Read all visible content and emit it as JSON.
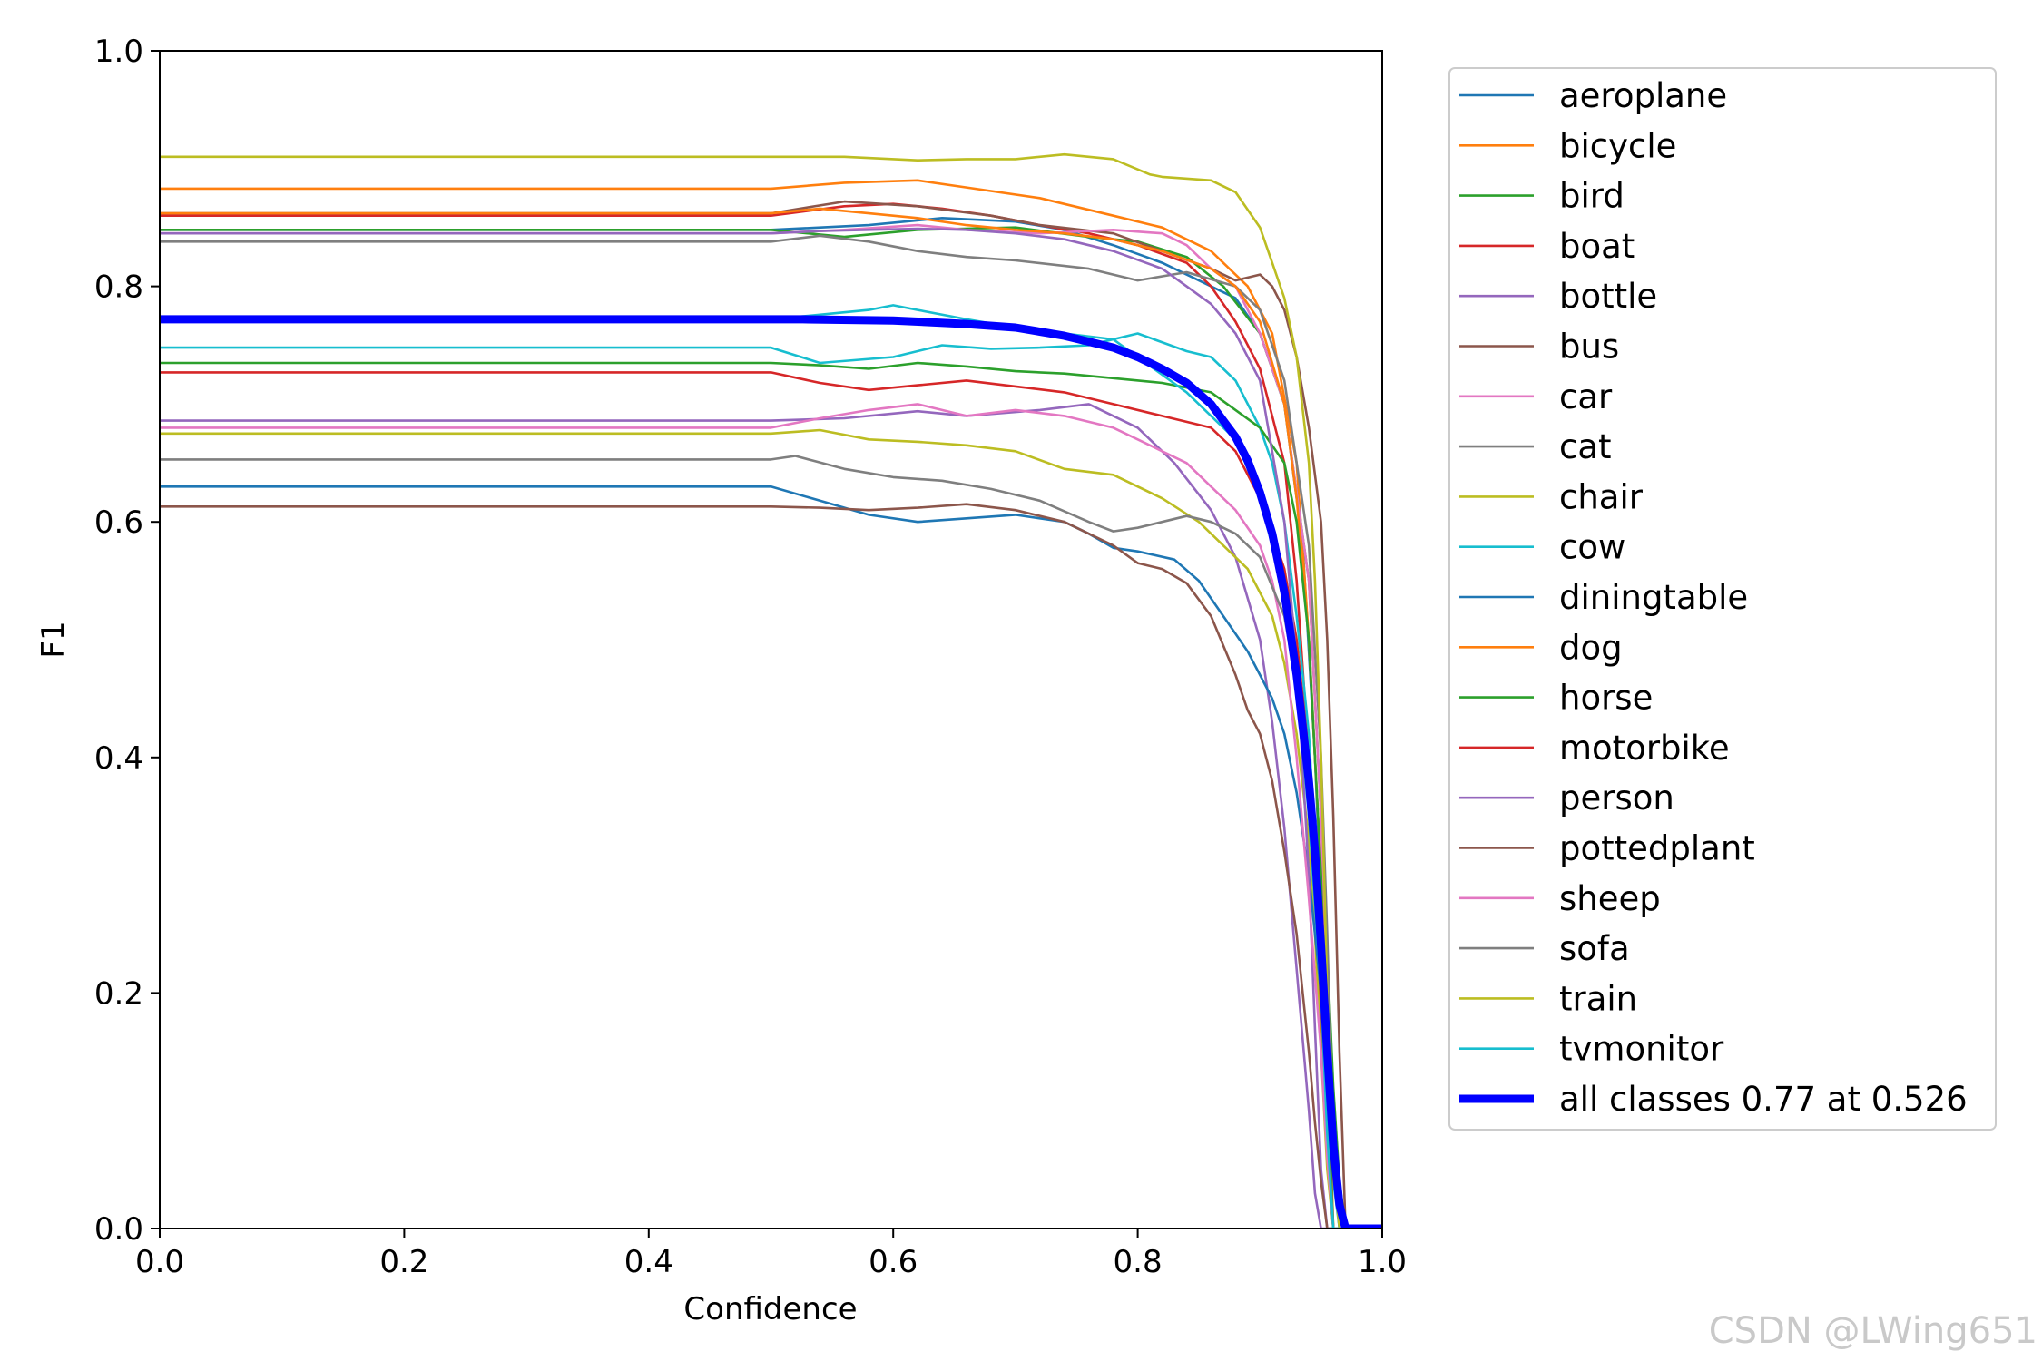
{
  "chart_data": {
    "type": "line",
    "title": "",
    "xlabel": "Confidence",
    "ylabel": "F1",
    "xlim": [
      0,
      1
    ],
    "ylim": [
      0,
      1
    ],
    "xticks": [
      "0.0",
      "0.2",
      "0.4",
      "0.6",
      "0.8",
      "1.0"
    ],
    "yticks": [
      "0.0",
      "0.2",
      "0.4",
      "0.6",
      "0.8",
      "1.0"
    ],
    "legend_position": "outside-right",
    "series": [
      {
        "name": "aeroplane",
        "color": "#1f77b4",
        "x": [
          0,
          0.5,
          0.58,
          0.64,
          0.7,
          0.74,
          0.78,
          0.82,
          0.85,
          0.88,
          0.9,
          0.92,
          0.935,
          0.945,
          0.955,
          0.96,
          0.965,
          0.97,
          1.0
        ],
        "y": [
          0.848,
          0.848,
          0.852,
          0.858,
          0.855,
          0.848,
          0.835,
          0.82,
          0.805,
          0.79,
          0.76,
          0.7,
          0.58,
          0.4,
          0.15,
          0.05,
          0.01,
          0.0,
          0.0
        ]
      },
      {
        "name": "bicycle",
        "color": "#ff7f0e",
        "x": [
          0,
          0.5,
          0.56,
          0.62,
          0.66,
          0.72,
          0.78,
          0.82,
          0.86,
          0.89,
          0.91,
          0.93,
          0.94,
          0.95,
          0.96,
          0.965,
          0.97,
          1.0
        ],
        "y": [
          0.883,
          0.883,
          0.888,
          0.89,
          0.884,
          0.875,
          0.86,
          0.85,
          0.83,
          0.8,
          0.76,
          0.65,
          0.5,
          0.3,
          0.1,
          0.03,
          0.0,
          0.0
        ]
      },
      {
        "name": "bird",
        "color": "#2ca02c",
        "x": [
          0,
          0.5,
          0.56,
          0.62,
          0.7,
          0.76,
          0.8,
          0.84,
          0.87,
          0.9,
          0.92,
          0.94,
          0.95,
          0.96,
          0.965,
          0.97,
          1.0
        ],
        "y": [
          0.848,
          0.848,
          0.842,
          0.848,
          0.85,
          0.842,
          0.838,
          0.825,
          0.8,
          0.76,
          0.7,
          0.55,
          0.35,
          0.12,
          0.04,
          0.0,
          0.0
        ]
      },
      {
        "name": "boat",
        "color": "#d62728",
        "x": [
          0,
          0.5,
          0.56,
          0.6,
          0.64,
          0.68,
          0.72,
          0.76,
          0.8,
          0.84,
          0.86,
          0.88,
          0.9,
          0.92,
          0.93,
          0.94,
          0.95,
          0.955,
          0.96,
          1.0
        ],
        "y": [
          0.86,
          0.86,
          0.868,
          0.87,
          0.866,
          0.86,
          0.852,
          0.845,
          0.835,
          0.82,
          0.8,
          0.77,
          0.73,
          0.65,
          0.55,
          0.4,
          0.18,
          0.06,
          0.0,
          0.0
        ]
      },
      {
        "name": "bottle",
        "color": "#9467bd",
        "x": [
          0,
          0.5,
          0.56,
          0.62,
          0.66,
          0.72,
          0.76,
          0.8,
          0.83,
          0.86,
          0.88,
          0.9,
          0.91,
          0.92,
          0.93,
          0.94,
          0.945,
          0.95,
          1.0
        ],
        "y": [
          0.686,
          0.686,
          0.688,
          0.694,
          0.69,
          0.695,
          0.7,
          0.68,
          0.65,
          0.61,
          0.57,
          0.5,
          0.43,
          0.34,
          0.22,
          0.1,
          0.03,
          0.0,
          0.0
        ]
      },
      {
        "name": "bus",
        "color": "#8c564b",
        "x": [
          0,
          0.5,
          0.56,
          0.62,
          0.68,
          0.72,
          0.78,
          0.82,
          0.86,
          0.88,
          0.9,
          0.91,
          0.92,
          0.93,
          0.94,
          0.95,
          0.955,
          0.96,
          0.965,
          0.97,
          1.0
        ],
        "y": [
          0.862,
          0.862,
          0.872,
          0.868,
          0.86,
          0.852,
          0.845,
          0.83,
          0.815,
          0.805,
          0.81,
          0.8,
          0.78,
          0.74,
          0.68,
          0.6,
          0.5,
          0.35,
          0.15,
          0.0,
          0.0
        ]
      },
      {
        "name": "car",
        "color": "#e377c2",
        "x": [
          0,
          0.5,
          0.56,
          0.62,
          0.66,
          0.72,
          0.78,
          0.82,
          0.84,
          0.86,
          0.88,
          0.9,
          0.92,
          0.94,
          0.95,
          0.955,
          0.96,
          1.0
        ],
        "y": [
          0.845,
          0.845,
          0.848,
          0.852,
          0.848,
          0.845,
          0.848,
          0.845,
          0.835,
          0.815,
          0.8,
          0.76,
          0.7,
          0.55,
          0.35,
          0.15,
          0.0,
          0.0
        ]
      },
      {
        "name": "cat",
        "color": "#7f7f7f",
        "x": [
          0,
          0.5,
          0.54,
          0.58,
          0.62,
          0.66,
          0.7,
          0.76,
          0.8,
          0.84,
          0.88,
          0.9,
          0.92,
          0.94,
          0.95,
          0.955,
          0.96,
          0.965,
          1.0
        ],
        "y": [
          0.838,
          0.838,
          0.843,
          0.838,
          0.83,
          0.825,
          0.822,
          0.815,
          0.805,
          0.812,
          0.8,
          0.78,
          0.72,
          0.58,
          0.4,
          0.25,
          0.08,
          0.0,
          0.0
        ]
      },
      {
        "name": "chair",
        "color": "#bcbd22",
        "x": [
          0,
          0.5,
          0.54,
          0.58,
          0.62,
          0.66,
          0.7,
          0.74,
          0.78,
          0.82,
          0.85,
          0.87,
          0.89,
          0.9,
          0.91,
          0.92,
          0.93,
          0.94,
          0.945,
          0.95,
          0.955,
          0.96,
          1.0
        ],
        "y": [
          0.675,
          0.675,
          0.678,
          0.67,
          0.668,
          0.665,
          0.66,
          0.645,
          0.64,
          0.62,
          0.6,
          0.58,
          0.56,
          0.54,
          0.52,
          0.48,
          0.42,
          0.33,
          0.25,
          0.15,
          0.05,
          0.0,
          0.0
        ]
      },
      {
        "name": "cow",
        "color": "#17becf",
        "x": [
          0,
          0.5,
          0.54,
          0.6,
          0.64,
          0.68,
          0.72,
          0.76,
          0.8,
          0.84,
          0.86,
          0.88,
          0.9,
          0.91,
          0.92,
          0.93,
          0.94,
          0.945,
          0.95,
          0.955,
          0.96,
          0.965,
          1.0
        ],
        "y": [
          0.748,
          0.748,
          0.735,
          0.74,
          0.75,
          0.747,
          0.748,
          0.75,
          0.76,
          0.745,
          0.74,
          0.72,
          0.68,
          0.65,
          0.6,
          0.52,
          0.42,
          0.33,
          0.22,
          0.12,
          0.04,
          0.0,
          0.0
        ]
      },
      {
        "name": "diningtable",
        "color": "#1f77b4",
        "x": [
          0,
          0.5,
          0.54,
          0.58,
          0.62,
          0.66,
          0.7,
          0.74,
          0.76,
          0.78,
          0.8,
          0.83,
          0.85,
          0.87,
          0.88,
          0.89,
          0.9,
          0.91,
          0.92,
          0.93,
          0.94,
          0.95,
          0.955,
          0.96,
          0.965,
          1.0
        ],
        "y": [
          0.63,
          0.63,
          0.618,
          0.606,
          0.6,
          0.603,
          0.606,
          0.6,
          0.59,
          0.578,
          0.575,
          0.568,
          0.55,
          0.52,
          0.505,
          0.49,
          0.47,
          0.45,
          0.42,
          0.37,
          0.3,
          0.2,
          0.12,
          0.05,
          0.0,
          0.0
        ]
      },
      {
        "name": "dog",
        "color": "#ff7f0e",
        "x": [
          0,
          0.5,
          0.54,
          0.58,
          0.62,
          0.66,
          0.7,
          0.74,
          0.78,
          0.82,
          0.86,
          0.88,
          0.9,
          0.92,
          0.93,
          0.94,
          0.95,
          0.955,
          0.96,
          1.0
        ],
        "y": [
          0.862,
          0.862,
          0.866,
          0.862,
          0.858,
          0.852,
          0.848,
          0.845,
          0.84,
          0.83,
          0.815,
          0.8,
          0.77,
          0.7,
          0.62,
          0.5,
          0.3,
          0.15,
          0.0,
          0.0
        ]
      },
      {
        "name": "horse",
        "color": "#2ca02c",
        "x": [
          0,
          0.5,
          0.54,
          0.58,
          0.62,
          0.66,
          0.7,
          0.74,
          0.78,
          0.82,
          0.86,
          0.88,
          0.9,
          0.92,
          0.93,
          0.94,
          0.95,
          0.955,
          0.96,
          1.0
        ],
        "y": [
          0.735,
          0.735,
          0.733,
          0.73,
          0.735,
          0.732,
          0.728,
          0.726,
          0.722,
          0.718,
          0.71,
          0.695,
          0.68,
          0.65,
          0.6,
          0.5,
          0.3,
          0.12,
          0.0,
          0.0
        ]
      },
      {
        "name": "motorbike",
        "color": "#d62728",
        "x": [
          0,
          0.5,
          0.54,
          0.58,
          0.62,
          0.66,
          0.7,
          0.74,
          0.78,
          0.82,
          0.86,
          0.88,
          0.9,
          0.92,
          0.93,
          0.94,
          0.95,
          0.955,
          0.96,
          1.0
        ],
        "y": [
          0.727,
          0.727,
          0.718,
          0.712,
          0.716,
          0.72,
          0.715,
          0.71,
          0.7,
          0.69,
          0.68,
          0.66,
          0.62,
          0.56,
          0.5,
          0.4,
          0.22,
          0.08,
          0.0,
          0.0
        ]
      },
      {
        "name": "person",
        "color": "#9467bd",
        "x": [
          0,
          0.5,
          0.54,
          0.58,
          0.62,
          0.66,
          0.7,
          0.74,
          0.78,
          0.82,
          0.84,
          0.86,
          0.88,
          0.9,
          0.92,
          0.93,
          0.94,
          0.945,
          0.95,
          0.955,
          1.0
        ],
        "y": [
          0.845,
          0.845,
          0.847,
          0.848,
          0.849,
          0.848,
          0.845,
          0.84,
          0.83,
          0.815,
          0.8,
          0.785,
          0.76,
          0.72,
          0.6,
          0.48,
          0.3,
          0.17,
          0.05,
          0.0,
          0.0
        ]
      },
      {
        "name": "pottedplant",
        "color": "#8c564b",
        "x": [
          0,
          0.5,
          0.54,
          0.58,
          0.62,
          0.66,
          0.7,
          0.74,
          0.78,
          0.8,
          0.82,
          0.84,
          0.86,
          0.88,
          0.89,
          0.9,
          0.91,
          0.92,
          0.93,
          0.935,
          0.94,
          0.945,
          0.95,
          0.955,
          1.0
        ],
        "y": [
          0.613,
          0.613,
          0.612,
          0.61,
          0.612,
          0.615,
          0.61,
          0.6,
          0.58,
          0.565,
          0.56,
          0.548,
          0.52,
          0.47,
          0.44,
          0.42,
          0.38,
          0.32,
          0.25,
          0.2,
          0.15,
          0.09,
          0.04,
          0.0,
          0.0
        ]
      },
      {
        "name": "sheep",
        "color": "#e377c2",
        "x": [
          0,
          0.5,
          0.54,
          0.58,
          0.62,
          0.66,
          0.7,
          0.74,
          0.78,
          0.8,
          0.82,
          0.84,
          0.86,
          0.88,
          0.9,
          0.91,
          0.92,
          0.93,
          0.94,
          0.95,
          0.955,
          0.96,
          1.0
        ],
        "y": [
          0.68,
          0.68,
          0.688,
          0.695,
          0.7,
          0.69,
          0.695,
          0.69,
          0.68,
          0.67,
          0.66,
          0.65,
          0.63,
          0.61,
          0.58,
          0.55,
          0.5,
          0.4,
          0.28,
          0.15,
          0.06,
          0.0,
          0.0
        ]
      },
      {
        "name": "sofa",
        "color": "#7f7f7f",
        "x": [
          0,
          0.5,
          0.52,
          0.56,
          0.6,
          0.64,
          0.68,
          0.72,
          0.76,
          0.78,
          0.8,
          0.82,
          0.84,
          0.86,
          0.88,
          0.9,
          0.92,
          0.93,
          0.94,
          0.95,
          0.955,
          0.96,
          1.0
        ],
        "y": [
          0.653,
          0.653,
          0.656,
          0.645,
          0.638,
          0.635,
          0.628,
          0.618,
          0.6,
          0.592,
          0.595,
          0.6,
          0.605,
          0.6,
          0.59,
          0.57,
          0.52,
          0.46,
          0.36,
          0.2,
          0.09,
          0.0,
          0.0
        ]
      },
      {
        "name": "train",
        "color": "#bcbd22",
        "x": [
          0,
          0.5,
          0.56,
          0.62,
          0.66,
          0.7,
          0.74,
          0.78,
          0.81,
          0.82,
          0.86,
          0.88,
          0.9,
          0.91,
          0.92,
          0.93,
          0.94,
          0.945,
          0.95,
          0.955,
          0.96,
          0.965,
          1.0
        ],
        "y": [
          0.91,
          0.91,
          0.91,
          0.907,
          0.908,
          0.908,
          0.912,
          0.908,
          0.895,
          0.893,
          0.89,
          0.88,
          0.85,
          0.82,
          0.79,
          0.74,
          0.65,
          0.55,
          0.4,
          0.2,
          0.05,
          0.0,
          0.0
        ]
      },
      {
        "name": "tvmonitor",
        "color": "#17becf",
        "x": [
          0,
          0.5,
          0.54,
          0.58,
          0.6,
          0.62,
          0.66,
          0.7,
          0.74,
          0.78,
          0.8,
          0.82,
          0.84,
          0.86,
          0.88,
          0.9,
          0.92,
          0.93,
          0.94,
          0.95,
          0.955,
          0.96,
          1.0
        ],
        "y": [
          0.772,
          0.772,
          0.776,
          0.78,
          0.784,
          0.78,
          0.772,
          0.765,
          0.76,
          0.755,
          0.74,
          0.725,
          0.71,
          0.69,
          0.67,
          0.62,
          0.54,
          0.46,
          0.35,
          0.2,
          0.08,
          0.0,
          0.0
        ]
      },
      {
        "name": "all classes 0.77 at 0.526",
        "color": "#0000ff",
        "bold": true,
        "x": [
          0,
          0.4,
          0.5,
          0.526,
          0.6,
          0.66,
          0.7,
          0.74,
          0.78,
          0.8,
          0.82,
          0.84,
          0.86,
          0.88,
          0.89,
          0.9,
          0.91,
          0.92,
          0.93,
          0.94,
          0.945,
          0.95,
          0.955,
          0.96,
          0.965,
          0.97,
          1.0
        ],
        "y": [
          0.772,
          0.772,
          0.772,
          0.772,
          0.771,
          0.768,
          0.765,
          0.758,
          0.748,
          0.74,
          0.73,
          0.718,
          0.7,
          0.672,
          0.652,
          0.625,
          0.59,
          0.54,
          0.47,
          0.38,
          0.32,
          0.24,
          0.15,
          0.07,
          0.02,
          0.0,
          0.0
        ]
      }
    ]
  },
  "watermark": "CSDN @LWing651"
}
